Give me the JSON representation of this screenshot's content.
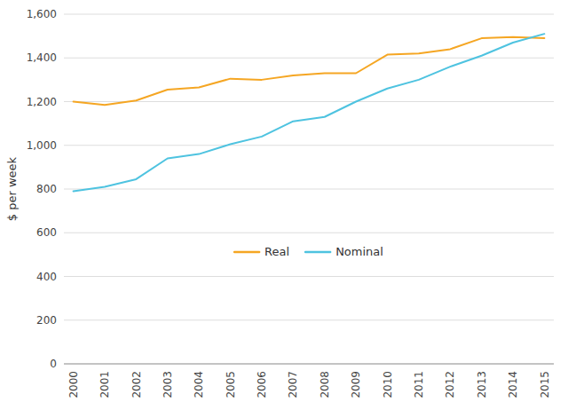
{
  "chart_data": {
    "type": "line",
    "y_label": "$ per week",
    "x": [
      2000,
      2001,
      2002,
      2003,
      2004,
      2005,
      2006,
      2007,
      2008,
      2009,
      2010,
      2011,
      2012,
      2013,
      2014,
      2015
    ],
    "series": [
      {
        "name": "Real",
        "color": "#F5A623",
        "values": [
          1200,
          1185,
          1205,
          1255,
          1265,
          1305,
          1300,
          1320,
          1330,
          1330,
          1415,
          1420,
          1440,
          1490,
          1495,
          1490
        ]
      },
      {
        "name": "Nominal",
        "color": "#4EC3E0",
        "values": [
          790,
          810,
          845,
          940,
          960,
          1005,
          1040,
          1110,
          1130,
          1200,
          1260,
          1300,
          1360,
          1410,
          1470,
          1510
        ]
      }
    ],
    "xlim": [
      1999.7,
      2015.3
    ],
    "xticks": [
      2000,
      2001,
      2002,
      2003,
      2004,
      2005,
      2006,
      2007,
      2008,
      2009,
      2010,
      2011,
      2012,
      2013,
      2014,
      2015
    ],
    "ylim": [
      0,
      1600
    ],
    "yticks": [
      0,
      200,
      400,
      600,
      800,
      {
        "value": 1000,
        "label": "1,000"
      },
      {
        "value": 1200,
        "label": "1,200"
      },
      {
        "value": 1400,
        "label": "1,400"
      },
      {
        "value": 1600,
        "label": "1,600"
      }
    ],
    "grid": true,
    "legend": "lower center"
  }
}
